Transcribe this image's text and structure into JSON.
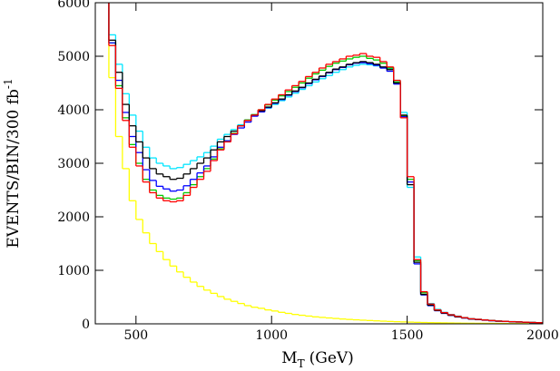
{
  "chart_data": {
    "type": "histogram",
    "xlabel": "M",
    "xlabel_sub": "T",
    "xlabel_unit": "(GeV)",
    "ylabel": "EVENTS/BIN/300 fb",
    "ylabel_sup": "-1",
    "xlim": [
      350,
      2000
    ],
    "xticks": [
      500,
      1000,
      1500,
      2000
    ],
    "ylim": [
      0,
      6000
    ],
    "yticks": [
      0,
      1000,
      2000,
      3000,
      4000,
      5000,
      6000
    ],
    "bins": [
      375,
      400,
      425,
      450,
      475,
      500,
      525,
      550,
      575,
      600,
      625,
      650,
      675,
      700,
      725,
      750,
      775,
      800,
      825,
      850,
      875,
      900,
      925,
      950,
      975,
      1000,
      1025,
      1050,
      1075,
      1100,
      1125,
      1150,
      1175,
      1200,
      1225,
      1250,
      1275,
      1300,
      1325,
      1350,
      1375,
      1400,
      1425,
      1450,
      1475,
      1500,
      1525,
      1550,
      1575,
      1600,
      1625,
      1650,
      1675,
      1700,
      1725,
      1750,
      1775,
      1800,
      1825,
      1850,
      1875,
      1900,
      1925,
      1950,
      1975,
      2000
    ],
    "series": [
      {
        "color": "#ffff00",
        "values": [
          6500,
          4600,
          3500,
          2900,
          2300,
          1950,
          1700,
          1500,
          1350,
          1200,
          1080,
          970,
          870,
          780,
          700,
          630,
          570,
          510,
          460,
          420,
          380,
          340,
          310,
          290,
          260,
          240,
          215,
          195,
          175,
          160,
          145,
          130,
          120,
          110,
          100,
          90,
          82,
          75,
          68,
          62,
          56,
          50,
          45,
          40,
          36,
          32,
          28,
          25,
          22,
          20,
          18,
          16,
          14,
          12,
          11,
          10,
          9,
          8,
          7,
          6,
          5,
          5,
          4,
          4,
          3
        ]
      },
      {
        "color": "#00e5ff",
        "values": [
          6200,
          5400,
          4850,
          4300,
          3900,
          3600,
          3300,
          3100,
          3000,
          2950,
          2900,
          2920,
          2980,
          3050,
          3120,
          3200,
          3320,
          3450,
          3540,
          3630,
          3720,
          3810,
          3900,
          3970,
          4030,
          4100,
          4170,
          4240,
          4310,
          4380,
          4450,
          4520,
          4580,
          4640,
          4700,
          4750,
          4800,
          4830,
          4850,
          4840,
          4820,
          4780,
          4760,
          4550,
          3950,
          2550,
          1250,
          600,
          380,
          270,
          215,
          175,
          145,
          118,
          98,
          86,
          75,
          64,
          54,
          48,
          42,
          37,
          32,
          27,
          22
        ]
      },
      {
        "color": "#00cc00",
        "values": [
          6350,
          5250,
          4450,
          3850,
          3350,
          3000,
          2700,
          2500,
          2400,
          2350,
          2330,
          2350,
          2450,
          2600,
          2750,
          2900,
          3080,
          3270,
          3420,
          3560,
          3700,
          3810,
          3910,
          4000,
          4090,
          4180,
          4260,
          4340,
          4420,
          4500,
          4590,
          4670,
          4740,
          4810,
          4870,
          4910,
          4950,
          4980,
          5000,
          4960,
          4930,
          4870,
          4780,
          4520,
          3880,
          2700,
          1180,
          580,
          360,
          255,
          205,
          165,
          135,
          112,
          92,
          82,
          71,
          61,
          51,
          45,
          40,
          35,
          30,
          25,
          20
        ]
      },
      {
        "color": "#0000ff",
        "values": [
          6200,
          5250,
          4550,
          3950,
          3500,
          3200,
          2880,
          2680,
          2570,
          2520,
          2480,
          2500,
          2580,
          2700,
          2820,
          2950,
          3120,
          3300,
          3420,
          3540,
          3660,
          3770,
          3880,
          3960,
          4040,
          4120,
          4190,
          4270,
          4340,
          4410,
          4490,
          4560,
          4620,
          4690,
          4750,
          4790,
          4840,
          4870,
          4880,
          4860,
          4830,
          4780,
          4720,
          4480,
          3870,
          2650,
          1120,
          540,
          340,
          245,
          195,
          158,
          128,
          108,
          88,
          78,
          68,
          58,
          49,
          44,
          39,
          34,
          29,
          24,
          19
        ]
      },
      {
        "color": "#000000",
        "values": [
          6300,
          5300,
          4700,
          4100,
          3700,
          3400,
          3100,
          2900,
          2800,
          2750,
          2700,
          2720,
          2800,
          2900,
          3000,
          3100,
          3250,
          3400,
          3500,
          3600,
          3700,
          3800,
          3900,
          3980,
          4050,
          4130,
          4200,
          4280,
          4350,
          4420,
          4500,
          4570,
          4630,
          4700,
          4760,
          4800,
          4850,
          4880,
          4900,
          4880,
          4850,
          4800,
          4750,
          4500,
          3900,
          2600,
          1150,
          550,
          350,
          250,
          200,
          160,
          130,
          110,
          90,
          80,
          70,
          60,
          50,
          45,
          40,
          35,
          30,
          25,
          20
        ]
      },
      {
        "color": "#ff0000",
        "values": [
          6400,
          5200,
          4400,
          3800,
          3300,
          2950,
          2650,
          2450,
          2350,
          2300,
          2280,
          2300,
          2400,
          2550,
          2700,
          2850,
          3050,
          3250,
          3400,
          3550,
          3700,
          3800,
          3900,
          4000,
          4100,
          4200,
          4280,
          4370,
          4450,
          4530,
          4620,
          4700,
          4780,
          4850,
          4900,
          4950,
          5000,
          5020,
          5050,
          5000,
          4980,
          4900,
          4800,
          4550,
          3850,
          2750,
          1200,
          600,
          370,
          260,
          210,
          170,
          140,
          115,
          95,
          85,
          72,
          62,
          52,
          46,
          41,
          36,
          31,
          26,
          21
        ]
      }
    ]
  }
}
